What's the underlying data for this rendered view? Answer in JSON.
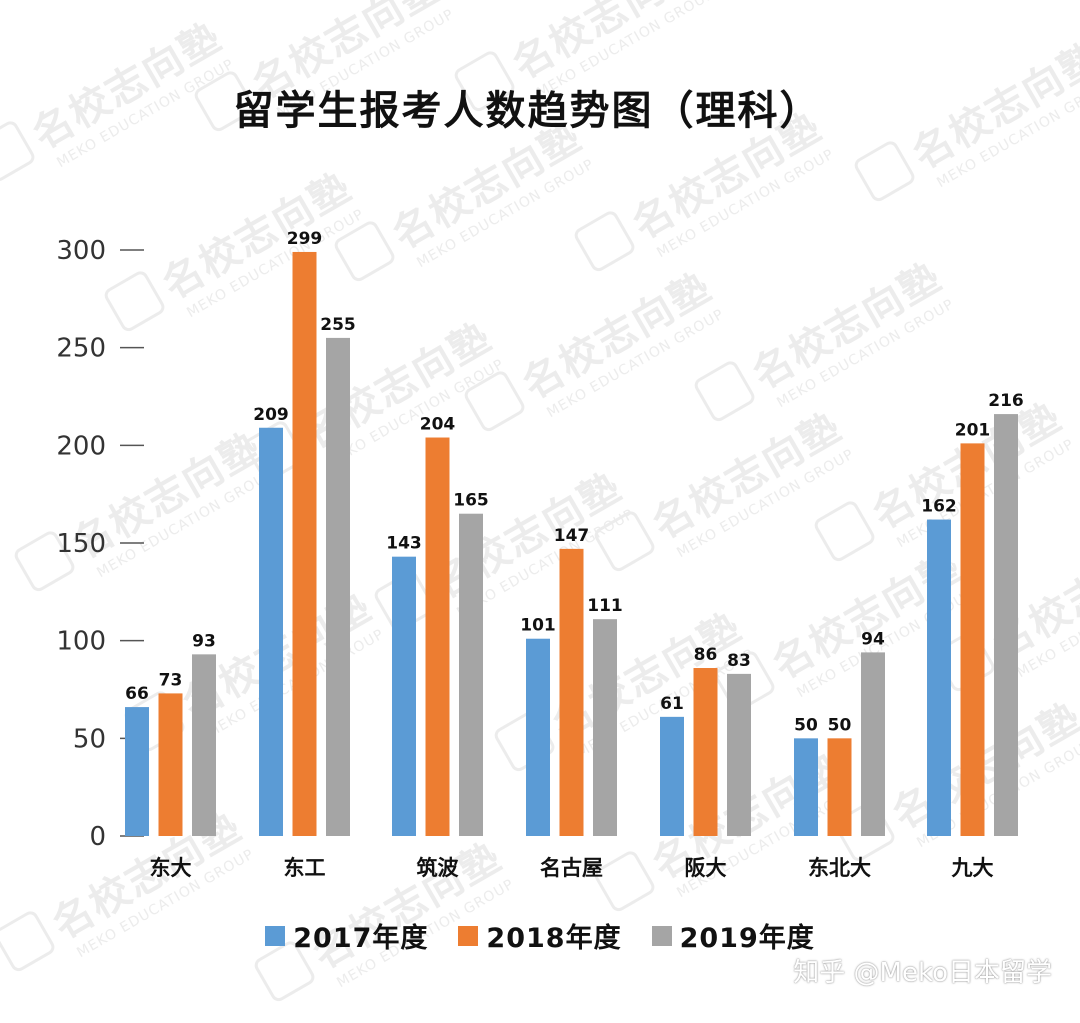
{
  "watermark": {
    "main": "名校志向塾",
    "sub": "MEKO EDUCATION GROUP"
  },
  "credit": "知乎 @Meko日本留学",
  "colors": {
    "series_2017": "#5b9bd5",
    "series_2018": "#ed7d31",
    "series_2019": "#a5a5a5",
    "axis_text": "#333333"
  },
  "chart_data": {
    "type": "bar",
    "title": "留学生报考人数趋势图（理科）",
    "xlabel": "",
    "ylabel": "",
    "ylim": [
      0,
      300
    ],
    "yticks": [
      "0",
      "50",
      "100",
      "150",
      "200",
      "250",
      "300"
    ],
    "grid": false,
    "legend_position": "bottom",
    "categories": [
      "东大",
      "东工",
      "筑波",
      "名古屋",
      "阪大",
      "东北大",
      "九大"
    ],
    "series": [
      {
        "name": "2017年度",
        "values": [
          66,
          209,
          143,
          101,
          61,
          50,
          162
        ]
      },
      {
        "name": "2018年度",
        "values": [
          73,
          299,
          204,
          147,
          86,
          50,
          201
        ]
      },
      {
        "name": "2019年度",
        "values": [
          93,
          255,
          165,
          111,
          83,
          94,
          216
        ]
      }
    ]
  }
}
